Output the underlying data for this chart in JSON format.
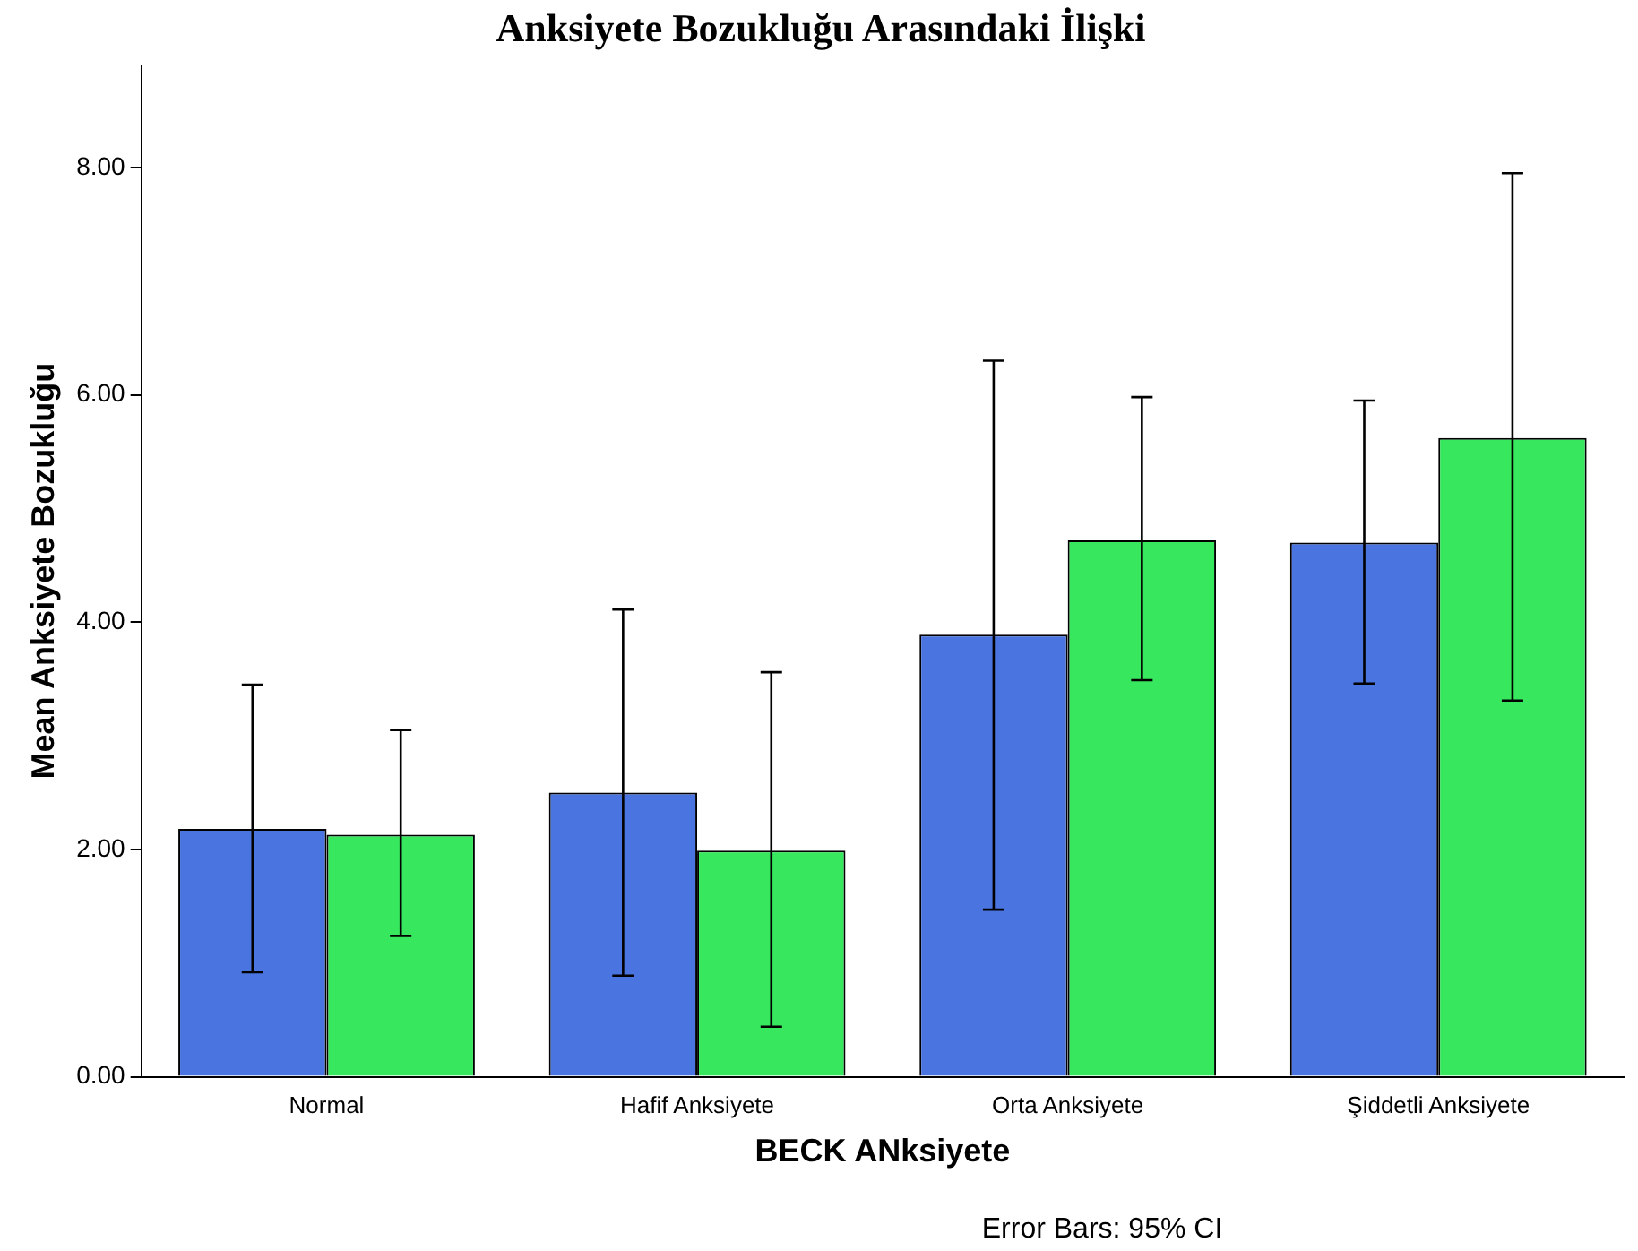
{
  "chart_data": {
    "type": "bar",
    "title": "Anksiyete Bozukluğu Arasındaki İlişki",
    "xlabel": "BECK ANksiyete",
    "ylabel": "Mean Anksiyete Bozukluğu",
    "categories": [
      "Normal",
      "Hafif Anksiyete",
      "Orta Anksiyete",
      "Şiddetli Anksiyete"
    ],
    "series": [
      {
        "color": "#4a74e0",
        "values": [
          2.18,
          2.5,
          3.89,
          4.7
        ],
        "errors": [
          [
            0.92,
            3.45
          ],
          [
            0.89,
            4.11
          ],
          [
            1.47,
            6.3
          ],
          [
            3.46,
            5.95
          ]
        ]
      },
      {
        "color": "#37e85e",
        "values": [
          2.13,
          1.99,
          4.72,
          5.62
        ],
        "errors": [
          [
            1.24,
            3.05
          ],
          [
            0.44,
            3.56
          ],
          [
            3.49,
            5.98
          ],
          [
            3.31,
            7.95
          ]
        ]
      }
    ],
    "ylim": [
      0,
      8.9
    ],
    "yticks": [
      {
        "value": 0,
        "label": "0.00"
      },
      {
        "value": 2,
        "label": "2.00"
      },
      {
        "value": 4,
        "label": "4.00"
      },
      {
        "value": 6,
        "label": "6.00"
      },
      {
        "value": 8,
        "label": "8.00"
      }
    ],
    "grid": false,
    "legend": false,
    "annotations": [
      "Error Bars: 95% CI"
    ]
  }
}
